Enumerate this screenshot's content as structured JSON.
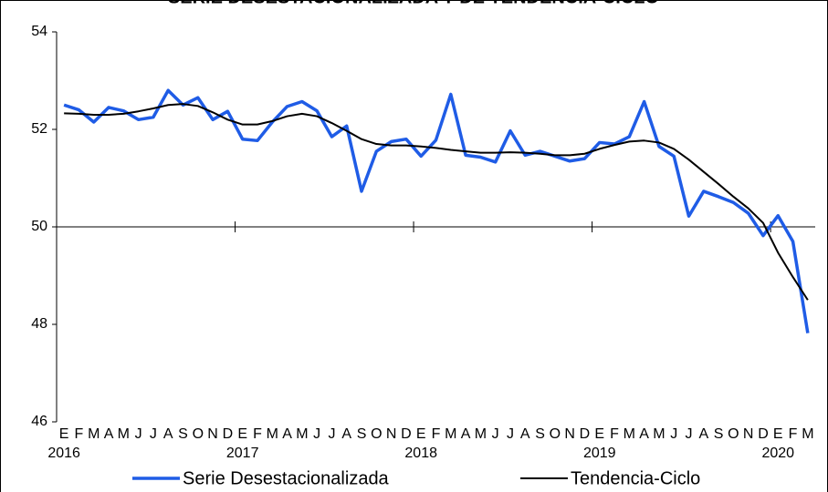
{
  "chart_data": {
    "type": "line",
    "title": "SERIE DESESTACIONALIZADA Y DE TENDENCIA-CICLO",
    "categories": [
      "E",
      "F",
      "M",
      "A",
      "M",
      "J",
      "J",
      "A",
      "S",
      "O",
      "N",
      "D",
      "E",
      "F",
      "M",
      "A",
      "M",
      "J",
      "J",
      "A",
      "S",
      "O",
      "N",
      "D",
      "E",
      "F",
      "M",
      "A",
      "M",
      "J",
      "J",
      "A",
      "S",
      "O",
      "N",
      "D",
      "E",
      "F",
      "M",
      "A",
      "M",
      "J",
      "J",
      "A",
      "S",
      "O",
      "N",
      "D",
      "E",
      "F",
      "M"
    ],
    "years": [
      "2016",
      "2017",
      "2018",
      "2019",
      "2020"
    ],
    "series": [
      {
        "name": "Serie Desestacionalizada",
        "color": "#1f5ce6",
        "width": 3.5,
        "values": [
          52.5,
          52.4,
          52.15,
          52.45,
          52.38,
          52.2,
          52.25,
          52.8,
          52.5,
          52.65,
          52.2,
          52.37,
          51.8,
          51.77,
          52.15,
          52.47,
          52.57,
          52.38,
          51.85,
          52.07,
          50.73,
          51.55,
          51.75,
          51.8,
          51.45,
          51.78,
          52.72,
          51.47,
          51.43,
          51.33,
          51.97,
          51.47,
          51.55,
          51.45,
          51.35,
          51.4,
          51.73,
          51.7,
          51.85,
          52.57,
          51.65,
          51.45,
          50.22,
          50.73,
          50.62,
          50.5,
          50.28,
          49.82,
          50.23,
          49.7,
          47.82
        ]
      },
      {
        "name": "Tendencia-Ciclo",
        "color": "#000000",
        "width": 2,
        "values": [
          52.33,
          52.32,
          52.3,
          52.3,
          52.32,
          52.37,
          52.43,
          52.5,
          52.52,
          52.48,
          52.35,
          52.2,
          52.1,
          52.1,
          52.17,
          52.27,
          52.32,
          52.27,
          52.13,
          51.97,
          51.8,
          51.7,
          51.67,
          51.67,
          51.65,
          51.62,
          51.58,
          51.55,
          51.52,
          51.52,
          51.53,
          51.52,
          51.5,
          51.47,
          51.47,
          51.5,
          51.6,
          51.68,
          51.75,
          51.77,
          51.73,
          51.6,
          51.38,
          51.13,
          50.88,
          50.62,
          50.38,
          50.08,
          49.47,
          48.97,
          48.5
        ]
      }
    ],
    "ylim": [
      46,
      54
    ],
    "yticks": [
      46,
      48,
      50,
      52,
      54
    ],
    "x_axis_at": 50,
    "grid": false
  }
}
